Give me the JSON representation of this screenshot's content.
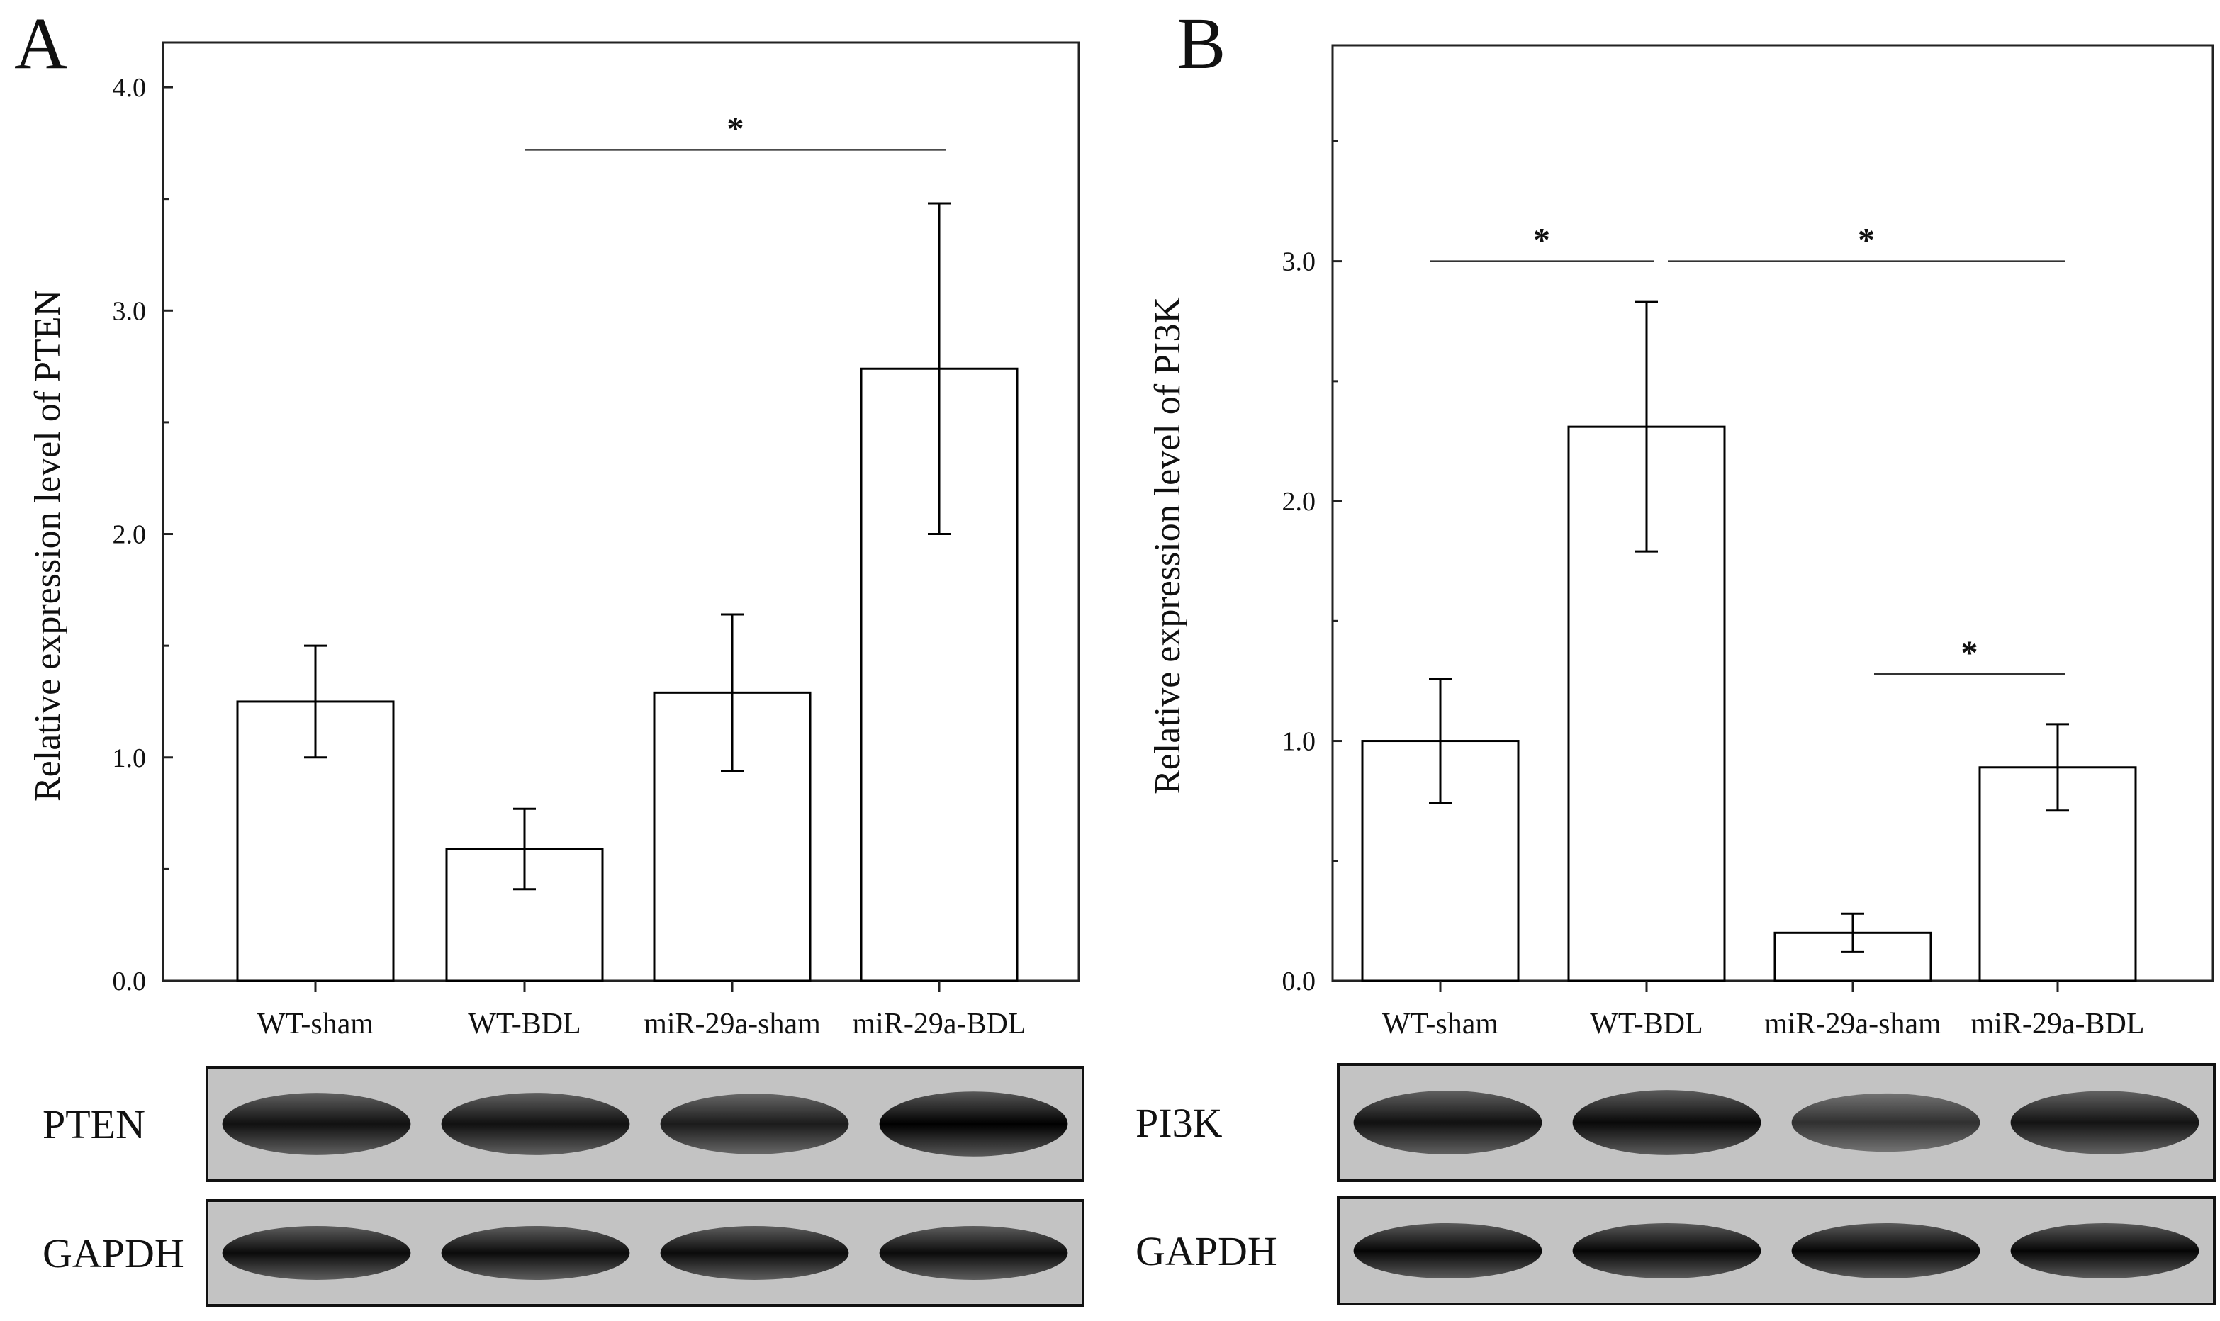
{
  "chart_data": [
    {
      "type": "bar",
      "panel_label": "A",
      "ylabel": "Relative expression level of PTEN",
      "categories": [
        "WT-sham",
        "WT-BDL",
        "miR-29a-sham",
        "miR-29a-BDL"
      ],
      "values": [
        1.25,
        0.59,
        1.29,
        2.74
      ],
      "error": [
        0.25,
        0.18,
        0.35,
        0.74
      ],
      "ylim": [
        0,
        4.2
      ],
      "ytick_values": [
        0,
        1,
        2,
        3,
        4
      ],
      "ytick_labels": [
        "0.0",
        "1.0",
        "2.0",
        "3.0",
        "4.0"
      ],
      "bar_fill": "#ffffff",
      "bar_edge": "#000000",
      "significance": [
        {
          "from": 1,
          "to": 3,
          "y": 3.72,
          "label": "*"
        }
      ],
      "blots": [
        {
          "label": "PTEN",
          "band_intensity": [
            0.85,
            0.85,
            0.75,
            1.0
          ]
        },
        {
          "label": "GAPDH",
          "band_intensity": [
            0.9,
            0.9,
            0.9,
            0.9
          ]
        }
      ]
    },
    {
      "type": "bar",
      "panel_label": "B",
      "ylabel": "Relative expression level of PI3K",
      "categories": [
        "WT-sham",
        "WT-BDL",
        "miR-29a-sham",
        "miR-29a-BDL"
      ],
      "values": [
        1.0,
        2.31,
        0.2,
        0.89
      ],
      "error": [
        0.26,
        0.52,
        0.08,
        0.18
      ],
      "ylim": [
        0,
        3.9
      ],
      "ytick_values": [
        0,
        1,
        2,
        3
      ],
      "ytick_labels": [
        "0.0",
        "1.0",
        "2.0",
        "3.0"
      ],
      "bar_fill": "#ffffff",
      "bar_edge": "#000000",
      "significance": [
        {
          "from": 0,
          "to": 1,
          "y": 3.0,
          "label": "*"
        },
        {
          "from": 1,
          "to": 3,
          "y": 3.0,
          "label": "*"
        },
        {
          "from": 2,
          "to": 3,
          "y": 1.28,
          "label": "*"
        }
      ],
      "blots": [
        {
          "label": "PI3K",
          "band_intensity": [
            0.85,
            0.92,
            0.55,
            0.82
          ]
        },
        {
          "label": "GAPDH",
          "band_intensity": [
            0.95,
            0.95,
            0.95,
            0.95
          ]
        }
      ]
    }
  ]
}
